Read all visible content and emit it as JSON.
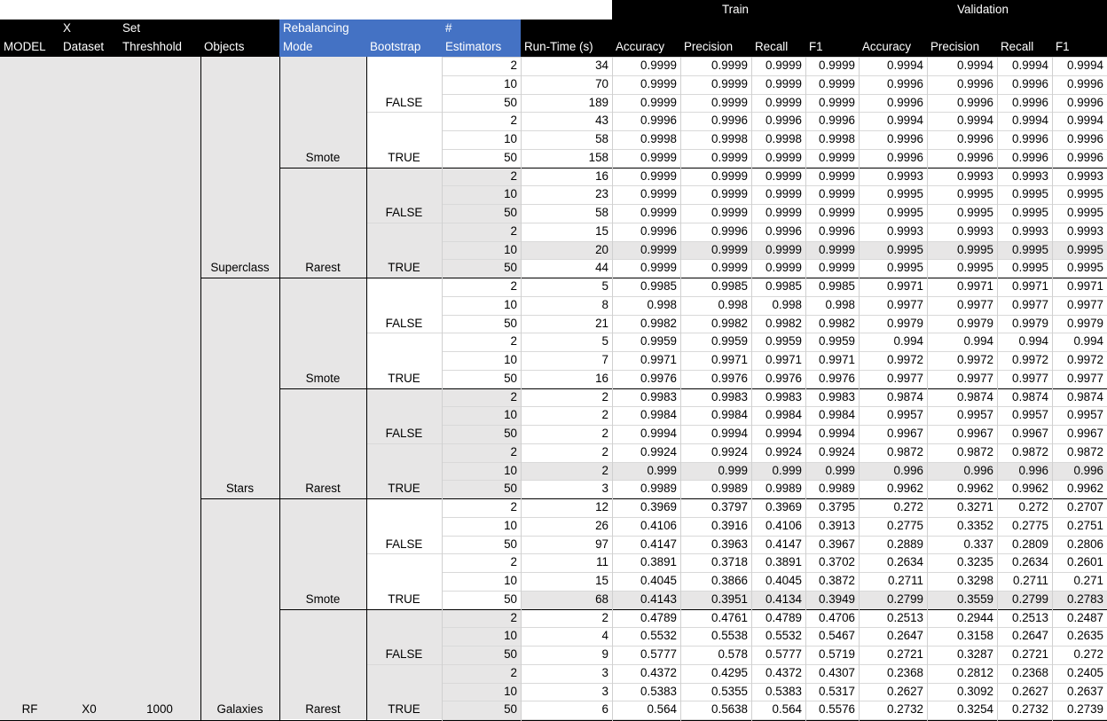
{
  "header": {
    "group_train": "Train",
    "group_validation": "Validation",
    "col1_line1": "",
    "col1_line2": "MODEL",
    "col2_line1": "X",
    "col2_line2": "Dataset",
    "col3_line1": "Set",
    "col3_line2": "Threshhold",
    "col4_line1": "",
    "col4_line2": "Objects",
    "col5_line1": "Rebalancing",
    "col5_line2": "Mode",
    "col6_line1": "",
    "col6_line2": "Bootstrap",
    "col7_line1": "#",
    "col7_line2": "Estimators",
    "col8_line2": "Run-Time (s)",
    "metrics": [
      "Accuracy",
      "Precision",
      "Recall",
      "F1",
      "Accuracy",
      "Precision",
      "Recall",
      "F1"
    ]
  },
  "labels": {
    "model": "RF",
    "dataset": "X0",
    "threshold": "1000",
    "objects": [
      "Superclass",
      "Stars",
      "Galaxies"
    ],
    "modes": [
      "Smote",
      "Rarest",
      "Smote",
      "Rarest",
      "Smote",
      "Rarest"
    ],
    "bootstrap_false": "FALSE",
    "bootstrap_true": "TRUE"
  },
  "rows": [
    [
      "2",
      "34",
      "0.9999",
      "0.9999",
      "0.9999",
      "0.9999",
      "0.9994",
      "0.9994",
      "0.9994",
      "0.9994"
    ],
    [
      "10",
      "70",
      "0.9999",
      "0.9999",
      "0.9999",
      "0.9999",
      "0.9996",
      "0.9996",
      "0.9996",
      "0.9996"
    ],
    [
      "50",
      "189",
      "0.9999",
      "0.9999",
      "0.9999",
      "0.9999",
      "0.9996",
      "0.9996",
      "0.9996",
      "0.9996"
    ],
    [
      "2",
      "43",
      "0.9996",
      "0.9996",
      "0.9996",
      "0.9996",
      "0.9994",
      "0.9994",
      "0.9994",
      "0.9994"
    ],
    [
      "10",
      "58",
      "0.9998",
      "0.9998",
      "0.9998",
      "0.9998",
      "0.9996",
      "0.9996",
      "0.9996",
      "0.9996"
    ],
    [
      "50",
      "158",
      "0.9999",
      "0.9999",
      "0.9999",
      "0.9999",
      "0.9996",
      "0.9996",
      "0.9996",
      "0.9996"
    ],
    [
      "2",
      "16",
      "0.9999",
      "0.9999",
      "0.9999",
      "0.9999",
      "0.9993",
      "0.9993",
      "0.9993",
      "0.9993"
    ],
    [
      "10",
      "23",
      "0.9999",
      "0.9999",
      "0.9999",
      "0.9999",
      "0.9995",
      "0.9995",
      "0.9995",
      "0.9995"
    ],
    [
      "50",
      "58",
      "0.9999",
      "0.9999",
      "0.9999",
      "0.9999",
      "0.9995",
      "0.9995",
      "0.9995",
      "0.9995"
    ],
    [
      "2",
      "15",
      "0.9996",
      "0.9996",
      "0.9996",
      "0.9996",
      "0.9993",
      "0.9993",
      "0.9993",
      "0.9993"
    ],
    [
      "10",
      "20",
      "0.9999",
      "0.9999",
      "0.9999",
      "0.9999",
      "0.9995",
      "0.9995",
      "0.9995",
      "0.9995"
    ],
    [
      "50",
      "44",
      "0.9999",
      "0.9999",
      "0.9999",
      "0.9999",
      "0.9995",
      "0.9995",
      "0.9995",
      "0.9995"
    ],
    [
      "2",
      "5",
      "0.9985",
      "0.9985",
      "0.9985",
      "0.9985",
      "0.9971",
      "0.9971",
      "0.9971",
      "0.9971"
    ],
    [
      "10",
      "8",
      "0.998",
      "0.998",
      "0.998",
      "0.998",
      "0.9977",
      "0.9977",
      "0.9977",
      "0.9977"
    ],
    [
      "50",
      "21",
      "0.9982",
      "0.9982",
      "0.9982",
      "0.9982",
      "0.9979",
      "0.9979",
      "0.9979",
      "0.9979"
    ],
    [
      "2",
      "5",
      "0.9959",
      "0.9959",
      "0.9959",
      "0.9959",
      "0.994",
      "0.994",
      "0.994",
      "0.994"
    ],
    [
      "10",
      "7",
      "0.9971",
      "0.9971",
      "0.9971",
      "0.9971",
      "0.9972",
      "0.9972",
      "0.9972",
      "0.9972"
    ],
    [
      "50",
      "16",
      "0.9976",
      "0.9976",
      "0.9976",
      "0.9976",
      "0.9977",
      "0.9977",
      "0.9977",
      "0.9977"
    ],
    [
      "2",
      "2",
      "0.9983",
      "0.9983",
      "0.9983",
      "0.9983",
      "0.9874",
      "0.9874",
      "0.9874",
      "0.9874"
    ],
    [
      "10",
      "2",
      "0.9984",
      "0.9984",
      "0.9984",
      "0.9984",
      "0.9957",
      "0.9957",
      "0.9957",
      "0.9957"
    ],
    [
      "50",
      "2",
      "0.9994",
      "0.9994",
      "0.9994",
      "0.9994",
      "0.9967",
      "0.9967",
      "0.9967",
      "0.9967"
    ],
    [
      "2",
      "2",
      "0.9924",
      "0.9924",
      "0.9924",
      "0.9924",
      "0.9872",
      "0.9872",
      "0.9872",
      "0.9872"
    ],
    [
      "10",
      "2",
      "0.999",
      "0.999",
      "0.999",
      "0.999",
      "0.996",
      "0.996",
      "0.996",
      "0.996"
    ],
    [
      "50",
      "3",
      "0.9989",
      "0.9989",
      "0.9989",
      "0.9989",
      "0.9962",
      "0.9962",
      "0.9962",
      "0.9962"
    ],
    [
      "2",
      "12",
      "0.3969",
      "0.3797",
      "0.3969",
      "0.3795",
      "0.272",
      "0.3271",
      "0.272",
      "0.2707"
    ],
    [
      "10",
      "26",
      "0.4106",
      "0.3916",
      "0.4106",
      "0.3913",
      "0.2775",
      "0.3352",
      "0.2775",
      "0.2751"
    ],
    [
      "50",
      "97",
      "0.4147",
      "0.3963",
      "0.4147",
      "0.3967",
      "0.2889",
      "0.337",
      "0.2809",
      "0.2806"
    ],
    [
      "2",
      "11",
      "0.3891",
      "0.3718",
      "0.3891",
      "0.3702",
      "0.2634",
      "0.3235",
      "0.2634",
      "0.2601"
    ],
    [
      "10",
      "15",
      "0.4045",
      "0.3866",
      "0.4045",
      "0.3872",
      "0.2711",
      "0.3298",
      "0.2711",
      "0.271"
    ],
    [
      "50",
      "68",
      "0.4143",
      "0.3951",
      "0.4134",
      "0.3949",
      "0.2799",
      "0.3559",
      "0.2799",
      "0.2783"
    ],
    [
      "2",
      "2",
      "0.4789",
      "0.4761",
      "0.4789",
      "0.4706",
      "0.2513",
      "0.2944",
      "0.2513",
      "0.2487"
    ],
    [
      "10",
      "4",
      "0.5532",
      "0.5538",
      "0.5532",
      "0.5467",
      "0.2647",
      "0.3158",
      "0.2647",
      "0.2635"
    ],
    [
      "50",
      "9",
      "0.5777",
      "0.578",
      "0.5777",
      "0.5719",
      "0.2721",
      "0.3287",
      "0.2721",
      "0.272"
    ],
    [
      "2",
      "3",
      "0.4372",
      "0.4295",
      "0.4372",
      "0.4307",
      "0.2368",
      "0.2812",
      "0.2368",
      "0.2405"
    ],
    [
      "10",
      "3",
      "0.5383",
      "0.5355",
      "0.5383",
      "0.5317",
      "0.2627",
      "0.3092",
      "0.2627",
      "0.2637"
    ],
    [
      "50",
      "6",
      "0.564",
      "0.5638",
      "0.564",
      "0.5576",
      "0.2732",
      "0.3254",
      "0.2732",
      "0.2739"
    ]
  ],
  "colors": {
    "header_bg": "#000000",
    "accent_blue": "#4472c4",
    "band_gray": "#e7e6e6"
  }
}
